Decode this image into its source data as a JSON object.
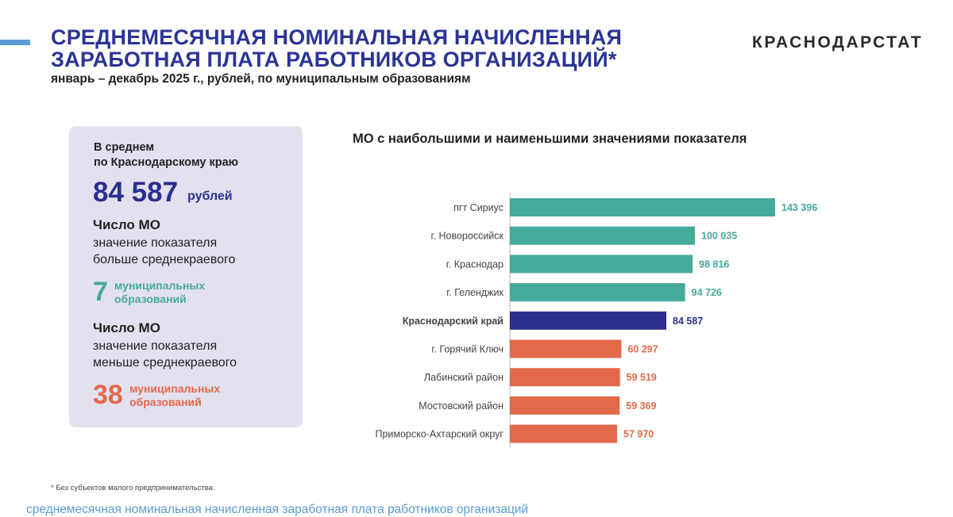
{
  "header": {
    "title": "СРЕДНЕМЕСЯЧНАЯ НОМИНАЛЬНАЯ НАЧИСЛЕННАЯ\nЗАРАБОТНАЯ ПЛАТА РАБОТНИКОВ ОРГАНИЗАЦИЙ*",
    "subtitle": "январь – декабрь 2025 г., рублей, по муниципальным образованиям",
    "brand": "КРАСНОДАРСТАТ"
  },
  "summary": {
    "avg_label": "В среднем\nпо Краснодарскому краю",
    "avg_value": "84 587",
    "avg_unit": "рублей",
    "above": {
      "title": "Число МО",
      "desc": "значение показателя\nбольше среднекраевого",
      "count": "7",
      "unit": "муниципальных\nобразований"
    },
    "below": {
      "title": "Число МО",
      "desc": "значение показателя\nменьше среднекраевого",
      "count": "38",
      "unit": "муниципальных\nобразований"
    }
  },
  "colors": {
    "above": "#45aa99",
    "average": "#2e2e8c",
    "below": "#e2694a",
    "title": "#2b3595",
    "accent": "#5b9bd5"
  },
  "chart_data": {
    "type": "bar",
    "orientation": "horizontal",
    "title": "МО с наибольшими и наименьшими значениями показателя",
    "categories": [
      "пгт Сириус",
      "г. Новороссийск",
      "г. Краснодар",
      "г. Геленджик",
      "Краснодарский край",
      "г. Горячий Ключ",
      "Лабинский район",
      "Мостовский район",
      "Приморско-Ахтарский округ"
    ],
    "values": [
      143396,
      100035,
      98816,
      94726,
      84587,
      60297,
      59519,
      59369,
      57970
    ],
    "value_labels": [
      "143 396",
      "100 035",
      "98 816",
      "94 726",
      "84 587",
      "60 297",
      "59 519",
      "59 369",
      "57 970"
    ],
    "groups": [
      "above",
      "above",
      "above",
      "above",
      "average",
      "below",
      "below",
      "below",
      "below"
    ],
    "xlim": [
      0,
      143396
    ],
    "grid": false
  },
  "footnote": "* Без субъектов малого предпринимательства.",
  "bottom_caption": "среднемесячная номинальная начисленная заработная плата работников организаций"
}
